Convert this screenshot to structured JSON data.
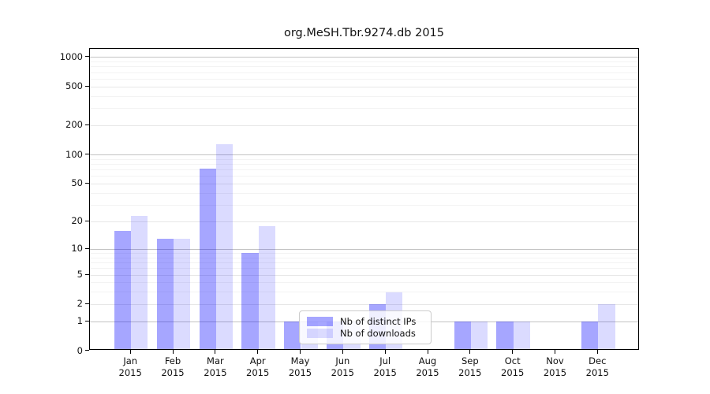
{
  "title": "org.MeSH.Tbr.9274.db 2015",
  "chart_data": {
    "type": "bar",
    "title": "org.MeSH.Tbr.9274.db 2015",
    "categories": [
      "Jan 2015",
      "Feb 2015",
      "Mar 2015",
      "Apr 2015",
      "May 2015",
      "Jun 2015",
      "Jul 2015",
      "Aug 2015",
      "Sep 2015",
      "Oct 2015",
      "Nov 2015",
      "Dec 2015"
    ],
    "series": [
      {
        "name": "Nb of distinct IPs",
        "base_color": "#0000ff",
        "alpha": 0.35,
        "perceived_hex": "#a6a6f0",
        "values": [
          16,
          13,
          72,
          9,
          1,
          1,
          2,
          0,
          1,
          1,
          0,
          1
        ]
      },
      {
        "name": "Nb of downloads",
        "base_color": "#0000ff",
        "alpha": 0.14,
        "perceived_hex": "#dcdcf8",
        "values": [
          23,
          13,
          130,
          18,
          1,
          1,
          3,
          0,
          1,
          1,
          0,
          2
        ]
      }
    ],
    "xlabel": "",
    "ylabel": "",
    "y_ticks": [
      0,
      1,
      2,
      5,
      10,
      20,
      50,
      100,
      200,
      500,
      1000
    ],
    "y_scale": "log(1+x)",
    "ylim": [
      0,
      1200
    ],
    "grid": true,
    "legend_position": "lower-center"
  }
}
